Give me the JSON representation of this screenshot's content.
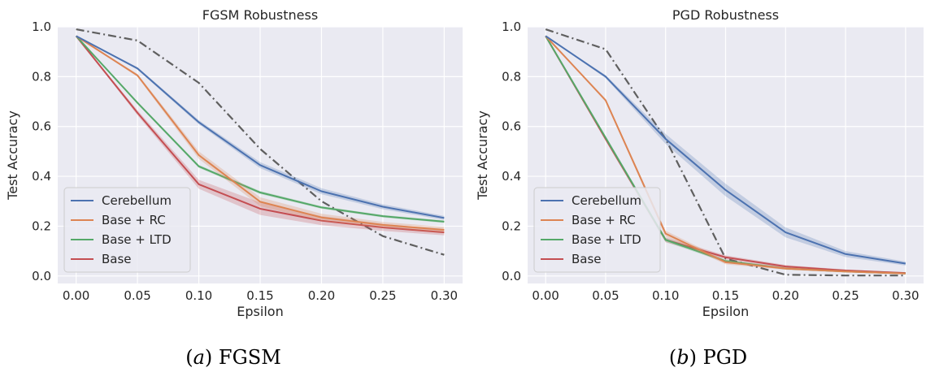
{
  "colors": {
    "background": "#eaeaf2",
    "grid": "#ffffff",
    "Cerebellum": "#4c72b0",
    "Base + RC": "#dd8452",
    "Base + LTD": "#55a868",
    "Base": "#c44e52",
    "dashdot": "#5f5f5f"
  },
  "captions": [
    {
      "letter": "a",
      "text": "FGSM"
    },
    {
      "letter": "b",
      "text": "PGD"
    }
  ],
  "chart_data": [
    {
      "type": "line",
      "title": "FGSM Robustness",
      "xlabel": "Epsilon",
      "ylabel": "Test Accuracy",
      "xlim": [
        -0.015,
        0.315
      ],
      "ylim": [
        -0.03,
        1.0
      ],
      "xticks": [
        "0.00",
        "0.05",
        "0.10",
        "0.15",
        "0.20",
        "0.25",
        "0.30"
      ],
      "yticks": [
        "0.0",
        "0.2",
        "0.4",
        "0.6",
        "0.8",
        "1.0"
      ],
      "grid": true,
      "legend_position": "lower-left",
      "x": [
        0.0,
        0.05,
        0.1,
        0.15,
        0.2,
        0.25,
        0.3
      ],
      "series": [
        {
          "name": "Cerebellum",
          "values": [
            0.963,
            0.833,
            0.617,
            0.445,
            0.34,
            0.278,
            0.233
          ],
          "band": [
            0,
            0.005,
            0.008,
            0.012,
            0.012,
            0.01,
            0.008
          ]
        },
        {
          "name": "Base + RC",
          "values": [
            0.963,
            0.805,
            0.485,
            0.298,
            0.235,
            0.205,
            0.185
          ],
          "band": [
            0,
            0.006,
            0.015,
            0.018,
            0.015,
            0.012,
            0.012
          ]
        },
        {
          "name": "Base + LTD",
          "values": [
            0.963,
            0.695,
            0.44,
            0.335,
            0.275,
            0.24,
            0.218
          ],
          "band": [
            0,
            0.005,
            0.006,
            0.006,
            0.005,
            0.005,
            0.005
          ]
        },
        {
          "name": "Base",
          "values": [
            0.963,
            0.655,
            0.368,
            0.27,
            0.222,
            0.195,
            0.175
          ],
          "band": [
            0,
            0.01,
            0.018,
            0.025,
            0.018,
            0.014,
            0.012
          ]
        },
        {
          "values": [
            0.99,
            0.945,
            0.775,
            0.51,
            0.3,
            0.16,
            0.085
          ],
          "dashed": true
        }
      ]
    },
    {
      "type": "line",
      "title": "PGD Robustness",
      "xlabel": "Epsilon",
      "ylabel": "Test Accuracy",
      "xlim": [
        -0.015,
        0.315
      ],
      "ylim": [
        -0.03,
        1.0
      ],
      "xticks": [
        "0.00",
        "0.05",
        "0.10",
        "0.15",
        "0.20",
        "0.25",
        "0.30"
      ],
      "yticks": [
        "0.0",
        "0.2",
        "0.4",
        "0.6",
        "0.8",
        "1.0"
      ],
      "grid": true,
      "legend_position": "lower-left",
      "x": [
        0.0,
        0.05,
        0.1,
        0.15,
        0.2,
        0.25,
        0.3
      ],
      "series": [
        {
          "name": "Cerebellum",
          "values": [
            0.963,
            0.8,
            0.55,
            0.345,
            0.175,
            0.088,
            0.05
          ],
          "band": [
            0,
            0.006,
            0.02,
            0.025,
            0.02,
            0.012,
            0.008
          ]
        },
        {
          "name": "Base + RC",
          "values": [
            0.963,
            0.705,
            0.17,
            0.055,
            0.03,
            0.018,
            0.01
          ],
          "band": [
            0,
            0.006,
            0.012,
            0.008,
            0.005,
            0.004,
            0.003
          ]
        },
        {
          "name": "Base + LTD",
          "values": [
            0.963,
            0.555,
            0.145,
            0.06,
            0.03,
            0.018,
            0.01
          ],
          "band": [
            0,
            0.006,
            0.008,
            0.006,
            0.004,
            0.003,
            0.003
          ]
        },
        {
          "name": "Base",
          "values": [
            0.963,
            0.55,
            0.145,
            0.075,
            0.038,
            0.022,
            0.012
          ],
          "band": [
            0,
            0.008,
            0.01,
            0.008,
            0.006,
            0.004,
            0.003
          ]
        },
        {
          "values": [
            0.99,
            0.91,
            0.55,
            0.07,
            0.005,
            0.002,
            0.002
          ],
          "dashed": true
        }
      ]
    }
  ]
}
